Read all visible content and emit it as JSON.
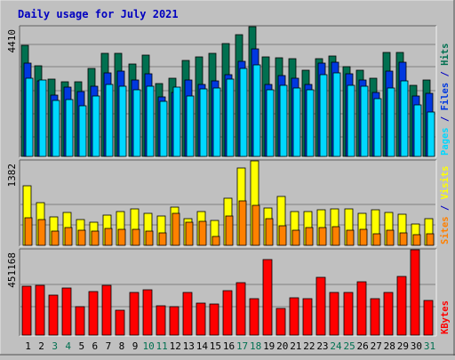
{
  "colors": {
    "background": "#c0c0c0",
    "title": "#0000c0",
    "hits": "#007050",
    "files": "#0038e0",
    "pages": "#00d8ff",
    "visits": "#ffff00",
    "sites": "#ff8000",
    "kbytes": "#ff0000",
    "weekend_day": "#007050",
    "weekday_day": "#000000"
  },
  "chart_data": {
    "type": "bar",
    "title": "Daily usage for July 2021",
    "categories": [
      "1",
      "2",
      "3",
      "4",
      "5",
      "6",
      "7",
      "8",
      "9",
      "10",
      "11",
      "12",
      "13",
      "14",
      "15",
      "16",
      "17",
      "18",
      "19",
      "20",
      "21",
      "22",
      "23",
      "24",
      "25",
      "26",
      "27",
      "28",
      "29",
      "30",
      "31"
    ],
    "weekend_days": [
      "3",
      "4",
      "10",
      "11",
      "17",
      "18",
      "24",
      "25",
      "31"
    ],
    "panels": [
      {
        "max_label": "4410",
        "ylim": [
          0,
          4410
        ],
        "legend": [
          {
            "text": "Hits",
            "color_key": "hits"
          },
          {
            "text": " / ",
            "color_key": "title"
          },
          {
            "text": "Files",
            "color_key": "files"
          },
          {
            "text": " / ",
            "color_key": "title"
          },
          {
            "text": "Pages",
            "color_key": "pages"
          }
        ],
        "series": [
          {
            "name": "Hits",
            "color_key": "hits",
            "values": [
              3780,
              3090,
              2630,
              2540,
              2540,
              2990,
              3510,
              3500,
              3130,
              3430,
              2490,
              2650,
              3260,
              3390,
              3510,
              3830,
              4140,
              4410,
              3390,
              3340,
              3320,
              2930,
              3330,
              3420,
              3040,
              2930,
              2660,
              3530,
              3520,
              2420,
              2600
            ]
          },
          {
            "name": "Files",
            "color_key": "files",
            "values": [
              3160,
              2560,
              2080,
              2350,
              2210,
              2400,
              2840,
              2900,
              2610,
              2800,
              2020,
              2180,
              2600,
              2450,
              2560,
              2770,
              3230,
              3650,
              2450,
              2760,
              2670,
              2440,
              3160,
              3200,
              2810,
              2610,
              2180,
              2900,
              3190,
              2050,
              2130
            ]
          },
          {
            "name": "Pages",
            "color_key": "pages",
            "values": [
              2660,
              2610,
              1900,
              1920,
              1730,
              2060,
              2440,
              2380,
              2280,
              2390,
              1870,
              2350,
              2050,
              2290,
              2330,
              2630,
              3000,
              3100,
              2260,
              2420,
              2320,
              2260,
              2770,
              2840,
              2430,
              2400,
              1950,
              2330,
              2560,
              1740,
              1520
            ]
          }
        ]
      },
      {
        "max_label": "1382",
        "ylim": [
          0,
          1382
        ],
        "legend": [
          {
            "text": "Visits",
            "color_key": "visits"
          },
          {
            "text": " / ",
            "color_key": "title"
          },
          {
            "text": "Sites",
            "color_key": "sites"
          }
        ],
        "series": [
          {
            "name": "Visits",
            "color_key": "visits",
            "values": [
              970,
              700,
              460,
              540,
              420,
              380,
              500,
              560,
              600,
              520,
              480,
              620,
              430,
              550,
              410,
              770,
              1270,
              1382,
              610,
              800,
              560,
              560,
              580,
              600,
              590,
              520,
              580,
              540,
              510,
              350,
              430
            ]
          },
          {
            "name": "Sites",
            "color_key": "sites",
            "values": [
              450,
              420,
              230,
              290,
              250,
              230,
              270,
              260,
              260,
              240,
              200,
              530,
              380,
              400,
              150,
              480,
              730,
              660,
              440,
              320,
              250,
              290,
              290,
              310,
              250,
              260,
              190,
              250,
              200,
              180,
              190
            ]
          }
        ]
      },
      {
        "max_label": "451168",
        "ylim": [
          0,
          451168
        ],
        "legend": [
          {
            "text": "KBytes",
            "color_key": "kbytes"
          }
        ],
        "series": [
          {
            "name": "KBytes",
            "color_key": "kbytes",
            "values": [
              260000,
              265000,
              210000,
              250000,
              150000,
              228000,
              262000,
              132000,
              225000,
              240000,
              155000,
              152000,
              225000,
              168000,
              165000,
              234000,
              278000,
              195000,
              400000,
              140000,
              196000,
              193000,
              306000,
              225000,
              225000,
              280000,
              193000,
              225000,
              310000,
              451168,
              182000
            ]
          }
        ]
      }
    ]
  }
}
